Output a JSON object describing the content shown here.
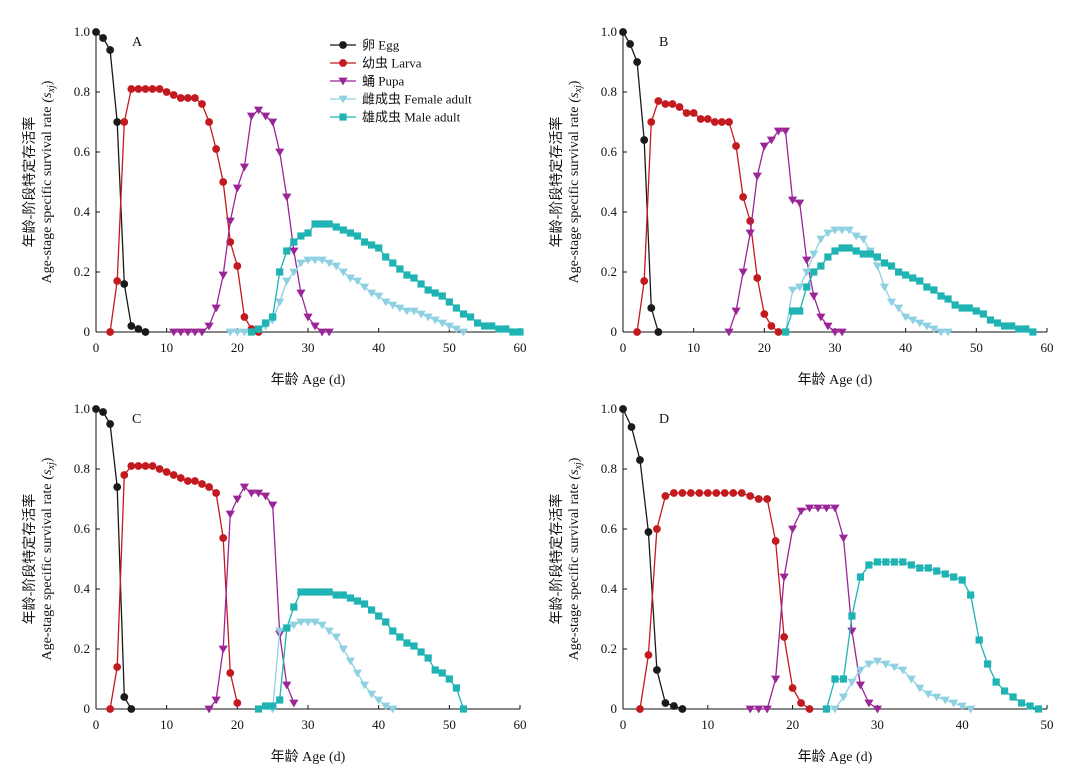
{
  "colors": {
    "egg": "#1a1a1a",
    "larva": "#c21a1f",
    "pupa": "#9a2596",
    "female": "#8ed1e3",
    "male": "#1fb3b3"
  },
  "axis_text": {
    "xlabel": "年龄 Age (d)",
    "ylabel_cn": "年龄-阶段特定存活率",
    "ylabel_en": "Age-stage specific survival rate",
    "ylabel_sym": "(s",
    "ylabel_sub": "xj",
    "ylabel_close": ")"
  },
  "legend": [
    {
      "key": "egg",
      "label": "卵 Egg",
      "marker": "circle"
    },
    {
      "key": "larva",
      "label": "幼虫 Larva",
      "marker": "circle"
    },
    {
      "key": "pupa",
      "label": "蛹 Pupa",
      "marker": "triangle-down"
    },
    {
      "key": "female",
      "label": "雌成虫 Female adult",
      "marker": "triangle-down"
    },
    {
      "key": "male",
      "label": "雄成虫 Male adult",
      "marker": "square"
    }
  ],
  "chart_data": [
    {
      "panel": "A",
      "type": "line",
      "xlim": [
        0,
        60
      ],
      "ylim": [
        0,
        1.0
      ],
      "xticks": [
        0,
        10,
        20,
        30,
        40,
        50,
        60
      ],
      "yticks": [
        "0",
        "0.2",
        "0.4",
        "0.6",
        "0.8",
        "1.0"
      ],
      "series": [
        {
          "key": "egg",
          "name": "卵 Egg",
          "x": [
            0,
            1,
            2,
            3,
            4,
            5,
            6,
            7
          ],
          "y": [
            1.0,
            0.98,
            0.94,
            0.7,
            0.16,
            0.02,
            0.01,
            0.0
          ]
        },
        {
          "key": "larva",
          "name": "幼虫 Larva",
          "x": [
            2,
            3,
            4,
            5,
            6,
            7,
            8,
            9,
            10,
            11,
            12,
            13,
            14,
            15,
            16,
            17,
            18,
            19,
            20,
            21,
            22,
            23
          ],
          "y": [
            0,
            0.17,
            0.7,
            0.81,
            0.81,
            0.81,
            0.81,
            0.81,
            0.8,
            0.79,
            0.78,
            0.78,
            0.78,
            0.76,
            0.7,
            0.61,
            0.5,
            0.3,
            0.22,
            0.05,
            0.01,
            0.0
          ]
        },
        {
          "key": "pupa",
          "name": "蛹 Pupa",
          "x": [
            11,
            12,
            13,
            14,
            15,
            16,
            17,
            18,
            19,
            20,
            21,
            22,
            23,
            24,
            25,
            26,
            27,
            28,
            29,
            30,
            31,
            32,
            33
          ],
          "y": [
            0,
            0,
            0,
            0,
            0,
            0.02,
            0.08,
            0.19,
            0.37,
            0.48,
            0.55,
            0.72,
            0.74,
            0.72,
            0.7,
            0.6,
            0.45,
            0.27,
            0.13,
            0.05,
            0.02,
            0.0,
            0.0
          ]
        },
        {
          "key": "female",
          "name": "雌成虫 Female adult",
          "x": [
            19,
            20,
            21,
            22,
            23,
            24,
            25,
            26,
            27,
            28,
            29,
            30,
            31,
            32,
            33,
            34,
            35,
            36,
            37,
            38,
            39,
            40,
            41,
            42,
            43,
            44,
            45,
            46,
            47,
            48,
            49,
            50,
            51,
            52
          ],
          "y": [
            0,
            0,
            0,
            0,
            0.01,
            0.02,
            0.04,
            0.1,
            0.17,
            0.2,
            0.23,
            0.24,
            0.24,
            0.24,
            0.23,
            0.22,
            0.2,
            0.18,
            0.17,
            0.15,
            0.13,
            0.12,
            0.1,
            0.09,
            0.08,
            0.07,
            0.07,
            0.06,
            0.05,
            0.04,
            0.03,
            0.02,
            0.01,
            0.0
          ]
        },
        {
          "key": "male",
          "name": "雄成虫 Male adult",
          "x": [
            22,
            23,
            24,
            25,
            26,
            27,
            28,
            29,
            30,
            31,
            32,
            33,
            34,
            35,
            36,
            37,
            38,
            39,
            40,
            41,
            42,
            43,
            44,
            45,
            46,
            47,
            48,
            49,
            50,
            51,
            52,
            53,
            54,
            55,
            56,
            57,
            58,
            59,
            60
          ],
          "y": [
            0,
            0.01,
            0.03,
            0.05,
            0.2,
            0.27,
            0.3,
            0.32,
            0.33,
            0.36,
            0.36,
            0.36,
            0.35,
            0.34,
            0.33,
            0.32,
            0.3,
            0.29,
            0.28,
            0.25,
            0.23,
            0.21,
            0.19,
            0.18,
            0.16,
            0.14,
            0.13,
            0.12,
            0.1,
            0.08,
            0.06,
            0.05,
            0.03,
            0.02,
            0.02,
            0.01,
            0.01,
            0.0,
            0.0
          ]
        }
      ]
    },
    {
      "panel": "B",
      "type": "line",
      "xlim": [
        0,
        60
      ],
      "ylim": [
        0,
        1.0
      ],
      "xticks": [
        0,
        10,
        20,
        30,
        40,
        50,
        60
      ],
      "yticks": [
        "0",
        "0.2",
        "0.4",
        "0.6",
        "0.8",
        "1.0"
      ],
      "series": [
        {
          "key": "egg",
          "name": "卵 Egg",
          "x": [
            0,
            1,
            2,
            3,
            4,
            5
          ],
          "y": [
            1.0,
            0.96,
            0.9,
            0.64,
            0.08,
            0.0
          ]
        },
        {
          "key": "larva",
          "name": "幼虫 Larva",
          "x": [
            2,
            3,
            4,
            5,
            6,
            7,
            8,
            9,
            10,
            11,
            12,
            13,
            14,
            15,
            16,
            17,
            18,
            19,
            20,
            21,
            22
          ],
          "y": [
            0,
            0.17,
            0.7,
            0.77,
            0.76,
            0.76,
            0.75,
            0.73,
            0.73,
            0.71,
            0.71,
            0.7,
            0.7,
            0.7,
            0.62,
            0.45,
            0.37,
            0.18,
            0.06,
            0.02,
            0.0
          ]
        },
        {
          "key": "pupa",
          "name": "蛹 Pupa",
          "x": [
            15,
            16,
            17,
            18,
            19,
            20,
            21,
            22,
            23,
            24,
            25,
            26,
            27,
            28,
            29,
            30,
            31
          ],
          "y": [
            0,
            0.07,
            0.2,
            0.33,
            0.52,
            0.62,
            0.64,
            0.67,
            0.67,
            0.44,
            0.43,
            0.24,
            0.12,
            0.05,
            0.02,
            0.0,
            0.0
          ]
        },
        {
          "key": "female",
          "name": "雌成虫 Female adult",
          "x": [
            23,
            24,
            25,
            26,
            27,
            28,
            29,
            30,
            31,
            32,
            33,
            34,
            35,
            36,
            37,
            38,
            39,
            40,
            41,
            42,
            43,
            44,
            45,
            46
          ],
          "y": [
            0,
            0.14,
            0.15,
            0.2,
            0.26,
            0.31,
            0.33,
            0.34,
            0.34,
            0.34,
            0.32,
            0.31,
            0.27,
            0.22,
            0.15,
            0.1,
            0.08,
            0.05,
            0.04,
            0.03,
            0.02,
            0.01,
            0.0,
            0.0
          ]
        },
        {
          "key": "male",
          "name": "雄成虫 Male adult",
          "x": [
            23,
            24,
            25,
            26,
            27,
            28,
            29,
            30,
            31,
            32,
            33,
            34,
            35,
            36,
            37,
            38,
            39,
            40,
            41,
            42,
            43,
            44,
            45,
            46,
            47,
            48,
            49,
            50,
            51,
            52,
            53,
            54,
            55,
            56,
            57,
            58
          ],
          "y": [
            0,
            0.07,
            0.07,
            0.15,
            0.2,
            0.22,
            0.25,
            0.27,
            0.28,
            0.28,
            0.27,
            0.26,
            0.26,
            0.25,
            0.23,
            0.22,
            0.2,
            0.19,
            0.18,
            0.17,
            0.15,
            0.14,
            0.12,
            0.11,
            0.09,
            0.08,
            0.08,
            0.07,
            0.06,
            0.04,
            0.03,
            0.02,
            0.02,
            0.01,
            0.01,
            0.0
          ]
        }
      ]
    },
    {
      "panel": "C",
      "type": "line",
      "xlim": [
        0,
        60
      ],
      "ylim": [
        0,
        1.0
      ],
      "xticks": [
        0,
        10,
        20,
        30,
        40,
        50,
        60
      ],
      "yticks": [
        "0",
        "0.2",
        "0.4",
        "0.6",
        "0.8",
        "1.0"
      ],
      "series": [
        {
          "key": "egg",
          "name": "卵 Egg",
          "x": [
            0,
            1,
            2,
            3,
            4,
            5
          ],
          "y": [
            1.0,
            0.99,
            0.95,
            0.74,
            0.04,
            0.0
          ]
        },
        {
          "key": "larva",
          "name": "幼虫 Larva",
          "x": [
            2,
            3,
            4,
            5,
            6,
            7,
            8,
            9,
            10,
            11,
            12,
            13,
            14,
            15,
            16,
            17,
            18,
            19,
            20
          ],
          "y": [
            0,
            0.14,
            0.78,
            0.81,
            0.81,
            0.81,
            0.81,
            0.8,
            0.79,
            0.78,
            0.77,
            0.76,
            0.76,
            0.75,
            0.74,
            0.72,
            0.57,
            0.12,
            0.02
          ]
        },
        {
          "key": "pupa",
          "name": "蛹 Pupa",
          "x": [
            16,
            17,
            18,
            19,
            20,
            21,
            22,
            23,
            24,
            25,
            26,
            27,
            28
          ],
          "y": [
            0,
            0.03,
            0.2,
            0.65,
            0.7,
            0.74,
            0.72,
            0.72,
            0.71,
            0.68,
            0.25,
            0.08,
            0.02
          ]
        },
        {
          "key": "female",
          "name": "雌成虫 Female adult",
          "x": [
            25,
            26,
            27,
            28,
            29,
            30,
            31,
            32,
            33,
            34,
            35,
            36,
            37,
            38,
            39,
            40,
            41,
            42
          ],
          "y": [
            0,
            0.26,
            0.27,
            0.28,
            0.29,
            0.29,
            0.29,
            0.28,
            0.26,
            0.24,
            0.2,
            0.16,
            0.12,
            0.08,
            0.05,
            0.03,
            0.01,
            0.0
          ]
        },
        {
          "key": "male",
          "name": "雄成虫 Male adult",
          "x": [
            23,
            24,
            25,
            26,
            27,
            28,
            29,
            30,
            31,
            32,
            33,
            34,
            35,
            36,
            37,
            38,
            39,
            40,
            41,
            42,
            43,
            44,
            45,
            46,
            47,
            48,
            49,
            50,
            51,
            52
          ],
          "y": [
            0,
            0.01,
            0.01,
            0.03,
            0.27,
            0.34,
            0.39,
            0.39,
            0.39,
            0.39,
            0.39,
            0.38,
            0.38,
            0.37,
            0.36,
            0.35,
            0.33,
            0.31,
            0.29,
            0.26,
            0.24,
            0.22,
            0.21,
            0.19,
            0.17,
            0.13,
            0.12,
            0.1,
            0.07,
            0.0
          ]
        }
      ]
    },
    {
      "panel": "D",
      "type": "line",
      "xlim": [
        0,
        50
      ],
      "ylim": [
        0,
        1.0
      ],
      "xticks": [
        0,
        10,
        20,
        30,
        40,
        50
      ],
      "yticks": [
        "0",
        "0.2",
        "0.4",
        "0.6",
        "0.8",
        "1.0"
      ],
      "series": [
        {
          "key": "egg",
          "name": "卵 Egg",
          "x": [
            0,
            1,
            2,
            3,
            4,
            5,
            6,
            7
          ],
          "y": [
            1.0,
            0.94,
            0.83,
            0.59,
            0.13,
            0.02,
            0.01,
            0.0
          ]
        },
        {
          "key": "larva",
          "name": "幼虫 Larva",
          "x": [
            2,
            3,
            4,
            5,
            6,
            7,
            8,
            9,
            10,
            11,
            12,
            13,
            14,
            15,
            16,
            17,
            18,
            19,
            20,
            21,
            22
          ],
          "y": [
            0,
            0.18,
            0.6,
            0.71,
            0.72,
            0.72,
            0.72,
            0.72,
            0.72,
            0.72,
            0.72,
            0.72,
            0.72,
            0.71,
            0.7,
            0.7,
            0.56,
            0.24,
            0.07,
            0.02,
            0.0
          ]
        },
        {
          "key": "pupa",
          "name": "蛹 Pupa",
          "x": [
            15,
            16,
            17,
            18,
            19,
            20,
            21,
            22,
            23,
            24,
            25,
            26,
            27,
            28,
            29,
            30
          ],
          "y": [
            0,
            0,
            0,
            0.1,
            0.44,
            0.6,
            0.66,
            0.67,
            0.67,
            0.67,
            0.67,
            0.57,
            0.26,
            0.08,
            0.02,
            0.0
          ]
        },
        {
          "key": "female",
          "name": "雌成虫 Female adult",
          "x": [
            24,
            25,
            26,
            27,
            28,
            29,
            30,
            31,
            32,
            33,
            34,
            35,
            36,
            37,
            38,
            39,
            40,
            41
          ],
          "y": [
            0,
            0,
            0.04,
            0.09,
            0.13,
            0.15,
            0.16,
            0.15,
            0.14,
            0.13,
            0.1,
            0.07,
            0.05,
            0.04,
            0.03,
            0.02,
            0.01,
            0.0
          ]
        },
        {
          "key": "male",
          "name": "雄成虫 Male adult",
          "x": [
            24,
            25,
            26,
            27,
            28,
            29,
            30,
            31,
            32,
            33,
            34,
            35,
            36,
            37,
            38,
            39,
            40,
            41,
            42,
            43,
            44,
            45,
            46,
            47,
            48,
            49
          ],
          "y": [
            0,
            0.1,
            0.1,
            0.31,
            0.44,
            0.48,
            0.49,
            0.49,
            0.49,
            0.49,
            0.48,
            0.47,
            0.47,
            0.46,
            0.45,
            0.44,
            0.43,
            0.38,
            0.23,
            0.15,
            0.09,
            0.06,
            0.04,
            0.02,
            0.01,
            0.0
          ]
        }
      ]
    }
  ]
}
